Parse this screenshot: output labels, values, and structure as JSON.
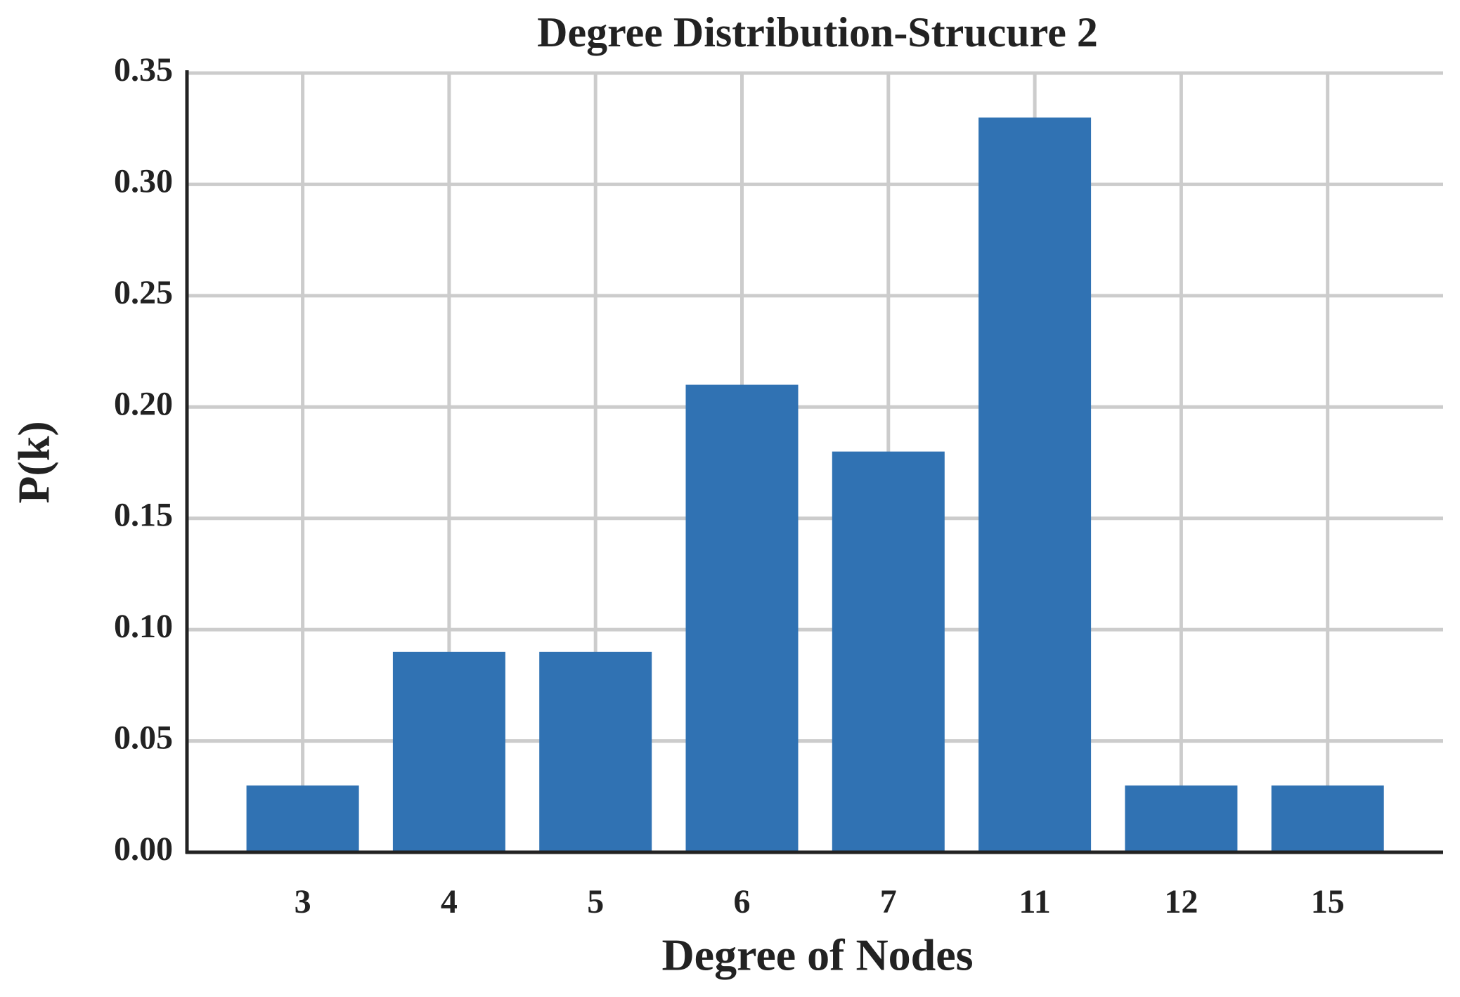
{
  "chart_data": {
    "type": "bar",
    "title": "Degree Distribution-Strucure 2",
    "x_label": "Degree of Nodes",
    "y_label": "P(k)",
    "categories": [
      "3",
      "4",
      "5",
      "6",
      "7",
      "11",
      "12",
      "15"
    ],
    "values": [
      0.03,
      0.09,
      0.09,
      0.21,
      0.18,
      0.33,
      0.03,
      0.03
    ],
    "color": "#3072b3",
    "ylim": [
      0,
      0.35
    ],
    "yticks": [
      {
        "value": 0,
        "label": "0.00"
      },
      {
        "value": 0.05,
        "label": "0.05"
      },
      {
        "value": 0.1,
        "label": "0.10"
      },
      {
        "value": 0.15,
        "label": "0.15"
      },
      {
        "value": 0.2,
        "label": "0.20"
      },
      {
        "value": 0.25,
        "label": "0.25"
      },
      {
        "value": 0.3,
        "label": "0.30"
      },
      {
        "value": 0.35,
        "label": "0.35"
      }
    ],
    "grid": true
  }
}
